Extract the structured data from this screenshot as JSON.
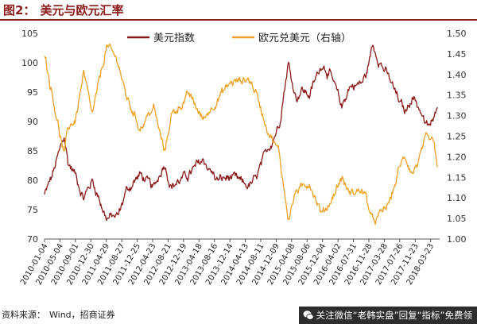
{
  "figure": {
    "label": "图2：",
    "title": "美元与欧元汇率"
  },
  "source": {
    "label": "资料来源：",
    "text": "Wind，招商证券"
  },
  "watermark": {
    "icon": "wechat-icon",
    "text": "关注微信“老韩实盘”回复“指标”免费领"
  },
  "chart_data": {
    "type": "line",
    "legend_position": "top",
    "grid": false,
    "x_tick_labels": [
      "2010-01-04",
      "2010-05-04",
      "2010-09-01",
      "2010-12-30",
      "2011-04-29",
      "2011-08-27",
      "2011-12-25",
      "2012-04-23",
      "2012-08-21",
      "2012-12-19",
      "2013-04-18",
      "2013-08-16",
      "2013-12-14",
      "2014-04-13",
      "2014-08-11",
      "2014-12-09",
      "2015-04-08",
      "2015-08-06",
      "2015-12-04",
      "2016-04-02",
      "2016-07-31",
      "2016-11-28",
      "2017-03-28",
      "2017-07-26",
      "2017-11-23",
      "2018-03-23"
    ],
    "y_left": {
      "ticks": [
        70,
        75,
        80,
        85,
        90,
        95,
        100,
        105
      ],
      "range": [
        70,
        105
      ]
    },
    "y_right": {
      "ticks": [
        "1.00",
        "1.05",
        "1.10",
        "1.15",
        "1.20",
        "1.25",
        "1.30",
        "1.35",
        "1.40",
        "1.45",
        "1.50"
      ],
      "range": [
        1.0,
        1.5
      ]
    },
    "series": [
      {
        "name": "美元指数",
        "axis": "left",
        "color": "#8b1a1a",
        "x": [
          "2010-01-04",
          "2010-03-01",
          "2010-06-07",
          "2010-07-05",
          "2010-09-01",
          "2010-11-04",
          "2011-01-10",
          "2011-05-02",
          "2011-08-01",
          "2011-09-26",
          "2012-01-16",
          "2012-05-01",
          "2012-07-24",
          "2012-09-14",
          "2013-02-01",
          "2013-05-20",
          "2013-09-06",
          "2013-12-20",
          "2014-05-08",
          "2014-07-01",
          "2014-10-01",
          "2014-12-31",
          "2015-03-13",
          "2015-04-10",
          "2015-05-15",
          "2015-06-22",
          "2015-08-24",
          "2015-12-01",
          "2016-02-01",
          "2016-05-02",
          "2016-07-01",
          "2016-10-03",
          "2016-11-08",
          "2016-12-28",
          "2017-03-01",
          "2017-05-10",
          "2017-07-31",
          "2017-09-08",
          "2017-11-01",
          "2018-01-02",
          "2018-02-15",
          "2018-04-20",
          "2018-05-15"
        ],
        "y": [
          77.5,
          80.5,
          87.5,
          83,
          81,
          77,
          80,
          73.5,
          74,
          78,
          81,
          78.5,
          83,
          79,
          81,
          83.5,
          80,
          80.5,
          79,
          80,
          85,
          89.5,
          100,
          97,
          94,
          95.5,
          94.5,
          100,
          98,
          92.5,
          96,
          96.5,
          98,
          103,
          100,
          97,
          93,
          91.5,
          94.5,
          92,
          89,
          90,
          93.5
        ]
      },
      {
        "name": "欧元兑美元（右轴）",
        "axis": "right",
        "color": "#f0a020",
        "x": [
          "2010-01-04",
          "2010-03-01",
          "2010-06-07",
          "2010-07-05",
          "2010-09-01",
          "2010-11-04",
          "2011-01-10",
          "2011-05-02",
          "2011-08-01",
          "2011-09-26",
          "2012-01-16",
          "2012-05-01",
          "2012-07-24",
          "2012-09-14",
          "2013-02-01",
          "2013-05-20",
          "2013-09-06",
          "2013-12-20",
          "2014-05-08",
          "2014-07-01",
          "2014-10-01",
          "2014-12-31",
          "2015-03-13",
          "2015-04-10",
          "2015-05-15",
          "2015-06-22",
          "2015-08-24",
          "2015-12-01",
          "2016-02-01",
          "2016-05-02",
          "2016-07-01",
          "2016-10-03",
          "2016-11-08",
          "2016-12-28",
          "2017-03-01",
          "2017-05-10",
          "2017-07-31",
          "2017-09-08",
          "2017-11-01",
          "2018-01-02",
          "2018-02-15",
          "2018-04-20",
          "2018-05-15"
        ],
        "y": [
          1.45,
          1.36,
          1.2,
          1.27,
          1.29,
          1.4,
          1.3,
          1.47,
          1.43,
          1.35,
          1.27,
          1.32,
          1.21,
          1.3,
          1.35,
          1.29,
          1.34,
          1.38,
          1.39,
          1.36,
          1.27,
          1.21,
          1.05,
          1.08,
          1.12,
          1.12,
          1.14,
          1.06,
          1.09,
          1.15,
          1.11,
          1.12,
          1.1,
          1.04,
          1.06,
          1.09,
          1.18,
          1.2,
          1.16,
          1.2,
          1.24,
          1.23,
          1.16
        ]
      }
    ]
  }
}
